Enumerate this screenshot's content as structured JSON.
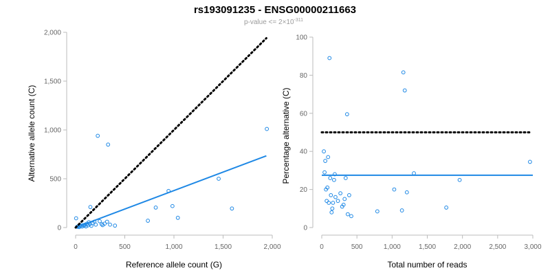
{
  "title": "rs193091235 - ENSG00000211663",
  "subtitle": {
    "prefix": "p-value <= 2×10",
    "exponent": "-311"
  },
  "colors": {
    "points": "#1e88e5",
    "fit_line": "#1e88e5",
    "reference_line": "#000000"
  },
  "chart_data": [
    {
      "type": "scatter",
      "title": "",
      "xlabel": "Reference allele count (G)",
      "ylabel": "Alternative allele count (C)",
      "xlim": [
        0,
        2000
      ],
      "ylim": [
        0,
        2000
      ],
      "x_ticks": [
        0,
        500,
        1000,
        1500,
        2000
      ],
      "y_ticks": [
        0,
        500,
        1000,
        1500,
        2000
      ],
      "x_tick_labels": [
        "0",
        "500",
        "1,000",
        "1,500",
        "2,000"
      ],
      "y_tick_labels": [
        "0",
        "500",
        "1,000",
        "1,500",
        "2,000"
      ],
      "points": [
        {
          "x": 5,
          "y": 95
        },
        {
          "x": 15,
          "y": 8
        },
        {
          "x": 25,
          "y": 12
        },
        {
          "x": 35,
          "y": 5
        },
        {
          "x": 45,
          "y": 15
        },
        {
          "x": 55,
          "y": 20
        },
        {
          "x": 65,
          "y": 10
        },
        {
          "x": 75,
          "y": 25
        },
        {
          "x": 85,
          "y": 18
        },
        {
          "x": 95,
          "y": 30
        },
        {
          "x": 105,
          "y": 12
        },
        {
          "x": 115,
          "y": 40
        },
        {
          "x": 125,
          "y": 22
        },
        {
          "x": 135,
          "y": 55
        },
        {
          "x": 145,
          "y": 35
        },
        {
          "x": 150,
          "y": 210
        },
        {
          "x": 160,
          "y": 18
        },
        {
          "x": 175,
          "y": 45
        },
        {
          "x": 190,
          "y": 60
        },
        {
          "x": 205,
          "y": 30
        },
        {
          "x": 225,
          "y": 940
        },
        {
          "x": 245,
          "y": 65
        },
        {
          "x": 265,
          "y": 35
        },
        {
          "x": 275,
          "y": 25
        },
        {
          "x": 295,
          "y": 40
        },
        {
          "x": 320,
          "y": 60
        },
        {
          "x": 330,
          "y": 850
        },
        {
          "x": 350,
          "y": 30
        },
        {
          "x": 400,
          "y": 20
        },
        {
          "x": 735,
          "y": 70
        },
        {
          "x": 815,
          "y": 205
        },
        {
          "x": 945,
          "y": 375
        },
        {
          "x": 985,
          "y": 220
        },
        {
          "x": 1040,
          "y": 100
        },
        {
          "x": 1455,
          "y": 500
        },
        {
          "x": 1590,
          "y": 195
        },
        {
          "x": 1945,
          "y": 1010
        }
      ],
      "reference_line": {
        "x": [
          0,
          1940
        ],
        "y": [
          0,
          1940
        ]
      },
      "fit_line": {
        "x": [
          0,
          1940
        ],
        "y": [
          0,
          735
        ]
      }
    },
    {
      "type": "scatter",
      "title": "",
      "xlabel": "Total number of reads",
      "ylabel": "Percentage alternative (C)",
      "xlim": [
        0,
        3000
      ],
      "ylim": [
        0,
        100
      ],
      "x_ticks": [
        0,
        500,
        1000,
        1500,
        2000,
        2500,
        3000
      ],
      "y_ticks": [
        0,
        20,
        40,
        60,
        80,
        100
      ],
      "x_tick_labels": [
        "0",
        "500",
        "1,000",
        "1,500",
        "2,000",
        "2,500",
        "3,000"
      ],
      "y_tick_labels": [
        "0",
        "20",
        "40",
        "60",
        "80",
        "100"
      ],
      "points": [
        {
          "x": 30,
          "y": 40
        },
        {
          "x": 40,
          "y": 29
        },
        {
          "x": 50,
          "y": 35
        },
        {
          "x": 60,
          "y": 20
        },
        {
          "x": 70,
          "y": 14
        },
        {
          "x": 80,
          "y": 21
        },
        {
          "x": 90,
          "y": 37
        },
        {
          "x": 100,
          "y": 13
        },
        {
          "x": 110,
          "y": 89
        },
        {
          "x": 120,
          "y": 26
        },
        {
          "x": 130,
          "y": 17
        },
        {
          "x": 140,
          "y": 8
        },
        {
          "x": 150,
          "y": 10
        },
        {
          "x": 160,
          "y": 13
        },
        {
          "x": 175,
          "y": 25
        },
        {
          "x": 185,
          "y": 28
        },
        {
          "x": 195,
          "y": 16
        },
        {
          "x": 230,
          "y": 14
        },
        {
          "x": 265,
          "y": 18
        },
        {
          "x": 290,
          "y": 11
        },
        {
          "x": 310,
          "y": 12
        },
        {
          "x": 325,
          "y": 15
        },
        {
          "x": 340,
          "y": 26
        },
        {
          "x": 360,
          "y": 59.5
        },
        {
          "x": 370,
          "y": 7
        },
        {
          "x": 390,
          "y": 17
        },
        {
          "x": 420,
          "y": 6
        },
        {
          "x": 790,
          "y": 8.5
        },
        {
          "x": 1030,
          "y": 20
        },
        {
          "x": 1140,
          "y": 9
        },
        {
          "x": 1160,
          "y": 81.5
        },
        {
          "x": 1180,
          "y": 72
        },
        {
          "x": 1210,
          "y": 18.5
        },
        {
          "x": 1310,
          "y": 28.5
        },
        {
          "x": 1770,
          "y": 10.5
        },
        {
          "x": 1960,
          "y": 25
        },
        {
          "x": 2960,
          "y": 34.5
        }
      ],
      "reference_line": {
        "x": [
          0,
          2950
        ],
        "y": [
          50,
          50
        ]
      },
      "fit_line": {
        "x": [
          0,
          3000
        ],
        "y": [
          27.5,
          27.5
        ]
      }
    }
  ]
}
